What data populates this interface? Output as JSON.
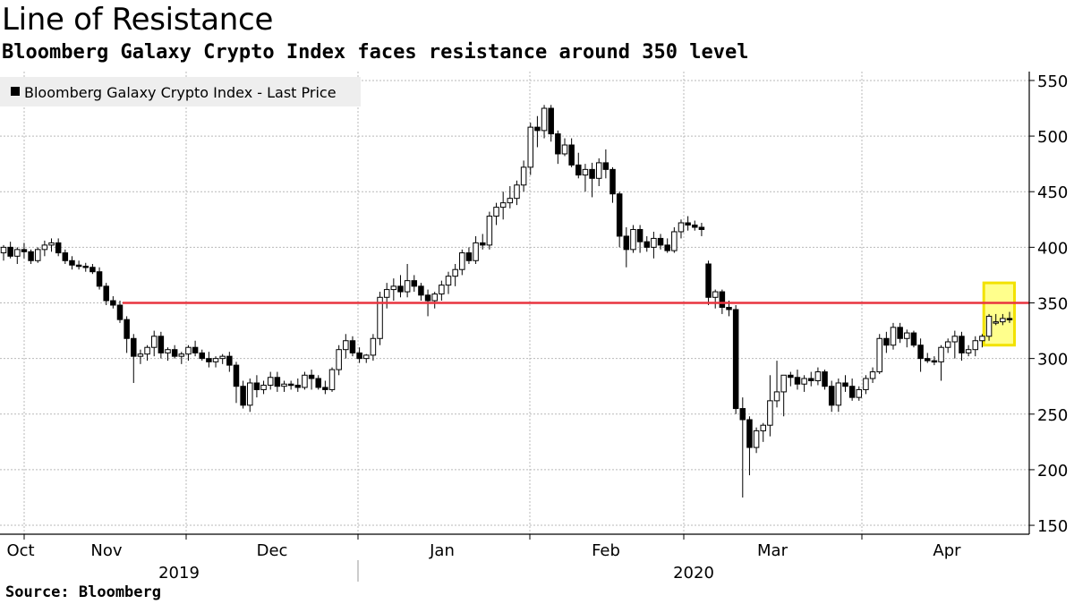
{
  "chart_data": {
    "type": "candlestick",
    "title": "Line of Resistance",
    "subtitle": "Bloomberg Galaxy Crypto Index faces resistance around 350 level",
    "source": "Source: Bloomberg",
    "legend": {
      "label": "Bloomberg Galaxy Crypto Index - Last Price",
      "placement": "top-left"
    },
    "y_axis": {
      "position": "right",
      "ylim": [
        142,
        558
      ],
      "ticks": [
        150,
        200,
        250,
        300,
        350,
        400,
        450,
        500,
        550
      ]
    },
    "x_axis": {
      "months": [
        "Oct",
        "Nov",
        "Dec",
        "Jan",
        "Feb",
        "Mar",
        "Apr"
      ],
      "years": [
        "2019",
        "2020"
      ]
    },
    "grid": true,
    "resistance_line": {
      "value": 350,
      "color": "#e8343f"
    },
    "highlight": {
      "color": "#ffff00",
      "description": "latest candles"
    },
    "colors": {
      "up": "#ffffff",
      "down": "#000000",
      "grid": "#b9b9b9"
    },
    "series": [
      {
        "name": "Bloomberg Galaxy Crypto Index - Last Price",
        "ohlc": [
          [
            395,
            402,
            388,
            400
          ],
          [
            400,
            405,
            390,
            392
          ],
          [
            392,
            400,
            385,
            398
          ],
          [
            398,
            404,
            390,
            396
          ],
          [
            396,
            398,
            385,
            388
          ],
          [
            388,
            400,
            386,
            398
          ],
          [
            398,
            406,
            392,
            402
          ],
          [
            402,
            408,
            396,
            404
          ],
          [
            404,
            408,
            392,
            395
          ],
          [
            395,
            398,
            385,
            388
          ],
          [
            388,
            392,
            380,
            384
          ],
          [
            384,
            388,
            380,
            383
          ],
          [
            383,
            386,
            378,
            382
          ],
          [
            382,
            385,
            376,
            378
          ],
          [
            378,
            382,
            362,
            365
          ],
          [
            365,
            368,
            348,
            352
          ],
          [
            352,
            356,
            345,
            348
          ],
          [
            348,
            352,
            332,
            335
          ],
          [
            335,
            338,
            305,
            318
          ],
          [
            318,
            322,
            278,
            302
          ],
          [
            302,
            308,
            295,
            304
          ],
          [
            304,
            312,
            298,
            310
          ],
          [
            310,
            325,
            302,
            320
          ],
          [
            320,
            324,
            300,
            305
          ],
          [
            305,
            310,
            298,
            308
          ],
          [
            308,
            312,
            300,
            302
          ],
          [
            302,
            306,
            295,
            304
          ],
          [
            304,
            312,
            298,
            310
          ],
          [
            310,
            316,
            302,
            305
          ],
          [
            305,
            308,
            298,
            300
          ],
          [
            300,
            306,
            292,
            297
          ],
          [
            297,
            302,
            292,
            300
          ],
          [
            300,
            304,
            295,
            302
          ],
          [
            302,
            306,
            288,
            294
          ],
          [
            294,
            297,
            260,
            275
          ],
          [
            275,
            280,
            255,
            258
          ],
          [
            258,
            282,
            252,
            278
          ],
          [
            278,
            285,
            265,
            272
          ],
          [
            272,
            280,
            268,
            276
          ],
          [
            276,
            288,
            272,
            283
          ],
          [
            283,
            288,
            270,
            275
          ],
          [
            275,
            280,
            270,
            277
          ],
          [
            277,
            280,
            272,
            276
          ],
          [
            276,
            282,
            270,
            274
          ],
          [
            274,
            288,
            272,
            285
          ],
          [
            285,
            290,
            272,
            282
          ],
          [
            282,
            285,
            272,
            274
          ],
          [
            274,
            280,
            268,
            272
          ],
          [
            272,
            292,
            270,
            290
          ],
          [
            290,
            312,
            285,
            308
          ],
          [
            308,
            322,
            300,
            316
          ],
          [
            316,
            320,
            302,
            305
          ],
          [
            305,
            310,
            296,
            300
          ],
          [
            300,
            304,
            296,
            303
          ],
          [
            303,
            322,
            298,
            318
          ],
          [
            318,
            360,
            312,
            355
          ],
          [
            355,
            368,
            345,
            362
          ],
          [
            362,
            372,
            352,
            365
          ],
          [
            365,
            375,
            355,
            360
          ],
          [
            360,
            385,
            355,
            370
          ],
          [
            370,
            375,
            360,
            365
          ],
          [
            365,
            368,
            352,
            357
          ],
          [
            357,
            362,
            338,
            352
          ],
          [
            352,
            360,
            345,
            358
          ],
          [
            358,
            370,
            352,
            366
          ],
          [
            366,
            378,
            358,
            374
          ],
          [
            374,
            385,
            365,
            380
          ],
          [
            380,
            398,
            375,
            395
          ],
          [
            395,
            400,
            385,
            388
          ],
          [
            388,
            410,
            385,
            404
          ],
          [
            404,
            412,
            398,
            402
          ],
          [
            402,
            432,
            398,
            428
          ],
          [
            428,
            440,
            420,
            436
          ],
          [
            436,
            450,
            425,
            440
          ],
          [
            440,
            455,
            435,
            444
          ],
          [
            444,
            460,
            438,
            456
          ],
          [
            456,
            478,
            450,
            472
          ],
          [
            472,
            512,
            465,
            508
          ],
          [
            508,
            518,
            490,
            505
          ],
          [
            505,
            528,
            498,
            525
          ],
          [
            525,
            528,
            495,
            502
          ],
          [
            502,
            505,
            475,
            484
          ],
          [
            484,
            498,
            482,
            492
          ],
          [
            492,
            498,
            472,
            474
          ],
          [
            474,
            485,
            462,
            465
          ],
          [
            465,
            475,
            450,
            470
          ],
          [
            470,
            476,
            445,
            462
          ],
          [
            462,
            480,
            455,
            476
          ],
          [
            476,
            488,
            462,
            470
          ],
          [
            470,
            472,
            440,
            448
          ],
          [
            448,
            450,
            400,
            410
          ],
          [
            410,
            418,
            382,
            398
          ],
          [
            398,
            420,
            395,
            416
          ],
          [
            416,
            420,
            395,
            405
          ],
          [
            405,
            410,
            396,
            400
          ],
          [
            400,
            414,
            390,
            408
          ],
          [
            408,
            412,
            398,
            402
          ],
          [
            402,
            408,
            395,
            397
          ],
          [
            397,
            418,
            395,
            414
          ],
          [
            414,
            425,
            408,
            422
          ],
          [
            422,
            428,
            415,
            420
          ],
          [
            420,
            424,
            415,
            418
          ],
          [
            418,
            422,
            410,
            416
          ],
          [
            385,
            388,
            348,
            355
          ],
          [
            355,
            362,
            345,
            360
          ],
          [
            360,
            362,
            340,
            346
          ],
          [
            346,
            352,
            338,
            344
          ],
          [
            344,
            348,
            250,
            255
          ],
          [
            255,
            265,
            175,
            245
          ],
          [
            245,
            248,
            195,
            220
          ],
          [
            220,
            238,
            215,
            235
          ],
          [
            235,
            242,
            225,
            240
          ],
          [
            240,
            285,
            230,
            262
          ],
          [
            262,
            298,
            256,
            270
          ],
          [
            270,
            282,
            248,
            285
          ],
          [
            285,
            288,
            275,
            283
          ],
          [
            283,
            290,
            272,
            277
          ],
          [
            277,
            285,
            270,
            282
          ],
          [
            282,
            288,
            275,
            280
          ],
          [
            280,
            292,
            276,
            288
          ],
          [
            288,
            290,
            272,
            275
          ],
          [
            275,
            280,
            252,
            258
          ],
          [
            258,
            282,
            252,
            278
          ],
          [
            278,
            285,
            270,
            275
          ],
          [
            275,
            282,
            262,
            265
          ],
          [
            265,
            275,
            262,
            272
          ],
          [
            272,
            285,
            268,
            282
          ],
          [
            282,
            292,
            278,
            288
          ],
          [
            288,
            322,
            286,
            318
          ],
          [
            318,
            324,
            305,
            312
          ],
          [
            312,
            332,
            308,
            328
          ],
          [
            328,
            332,
            314,
            318
          ],
          [
            318,
            326,
            310,
            323
          ],
          [
            323,
            325,
            310,
            312
          ],
          [
            312,
            318,
            288,
            300
          ],
          [
            300,
            305,
            296,
            298
          ],
          [
            298,
            302,
            294,
            297
          ],
          [
            297,
            312,
            280,
            310
          ],
          [
            310,
            318,
            305,
            315
          ],
          [
            315,
            325,
            300,
            320
          ],
          [
            320,
            324,
            298,
            305
          ],
          [
            305,
            312,
            302,
            308
          ],
          [
            308,
            320,
            302,
            316
          ],
          [
            316,
            322,
            310,
            320
          ],
          [
            320,
            340,
            316,
            338
          ],
          [
            333,
            340,
            330,
            333
          ],
          [
            333,
            340,
            330,
            336
          ],
          [
            336,
            342,
            332,
            335
          ]
        ]
      }
    ]
  }
}
